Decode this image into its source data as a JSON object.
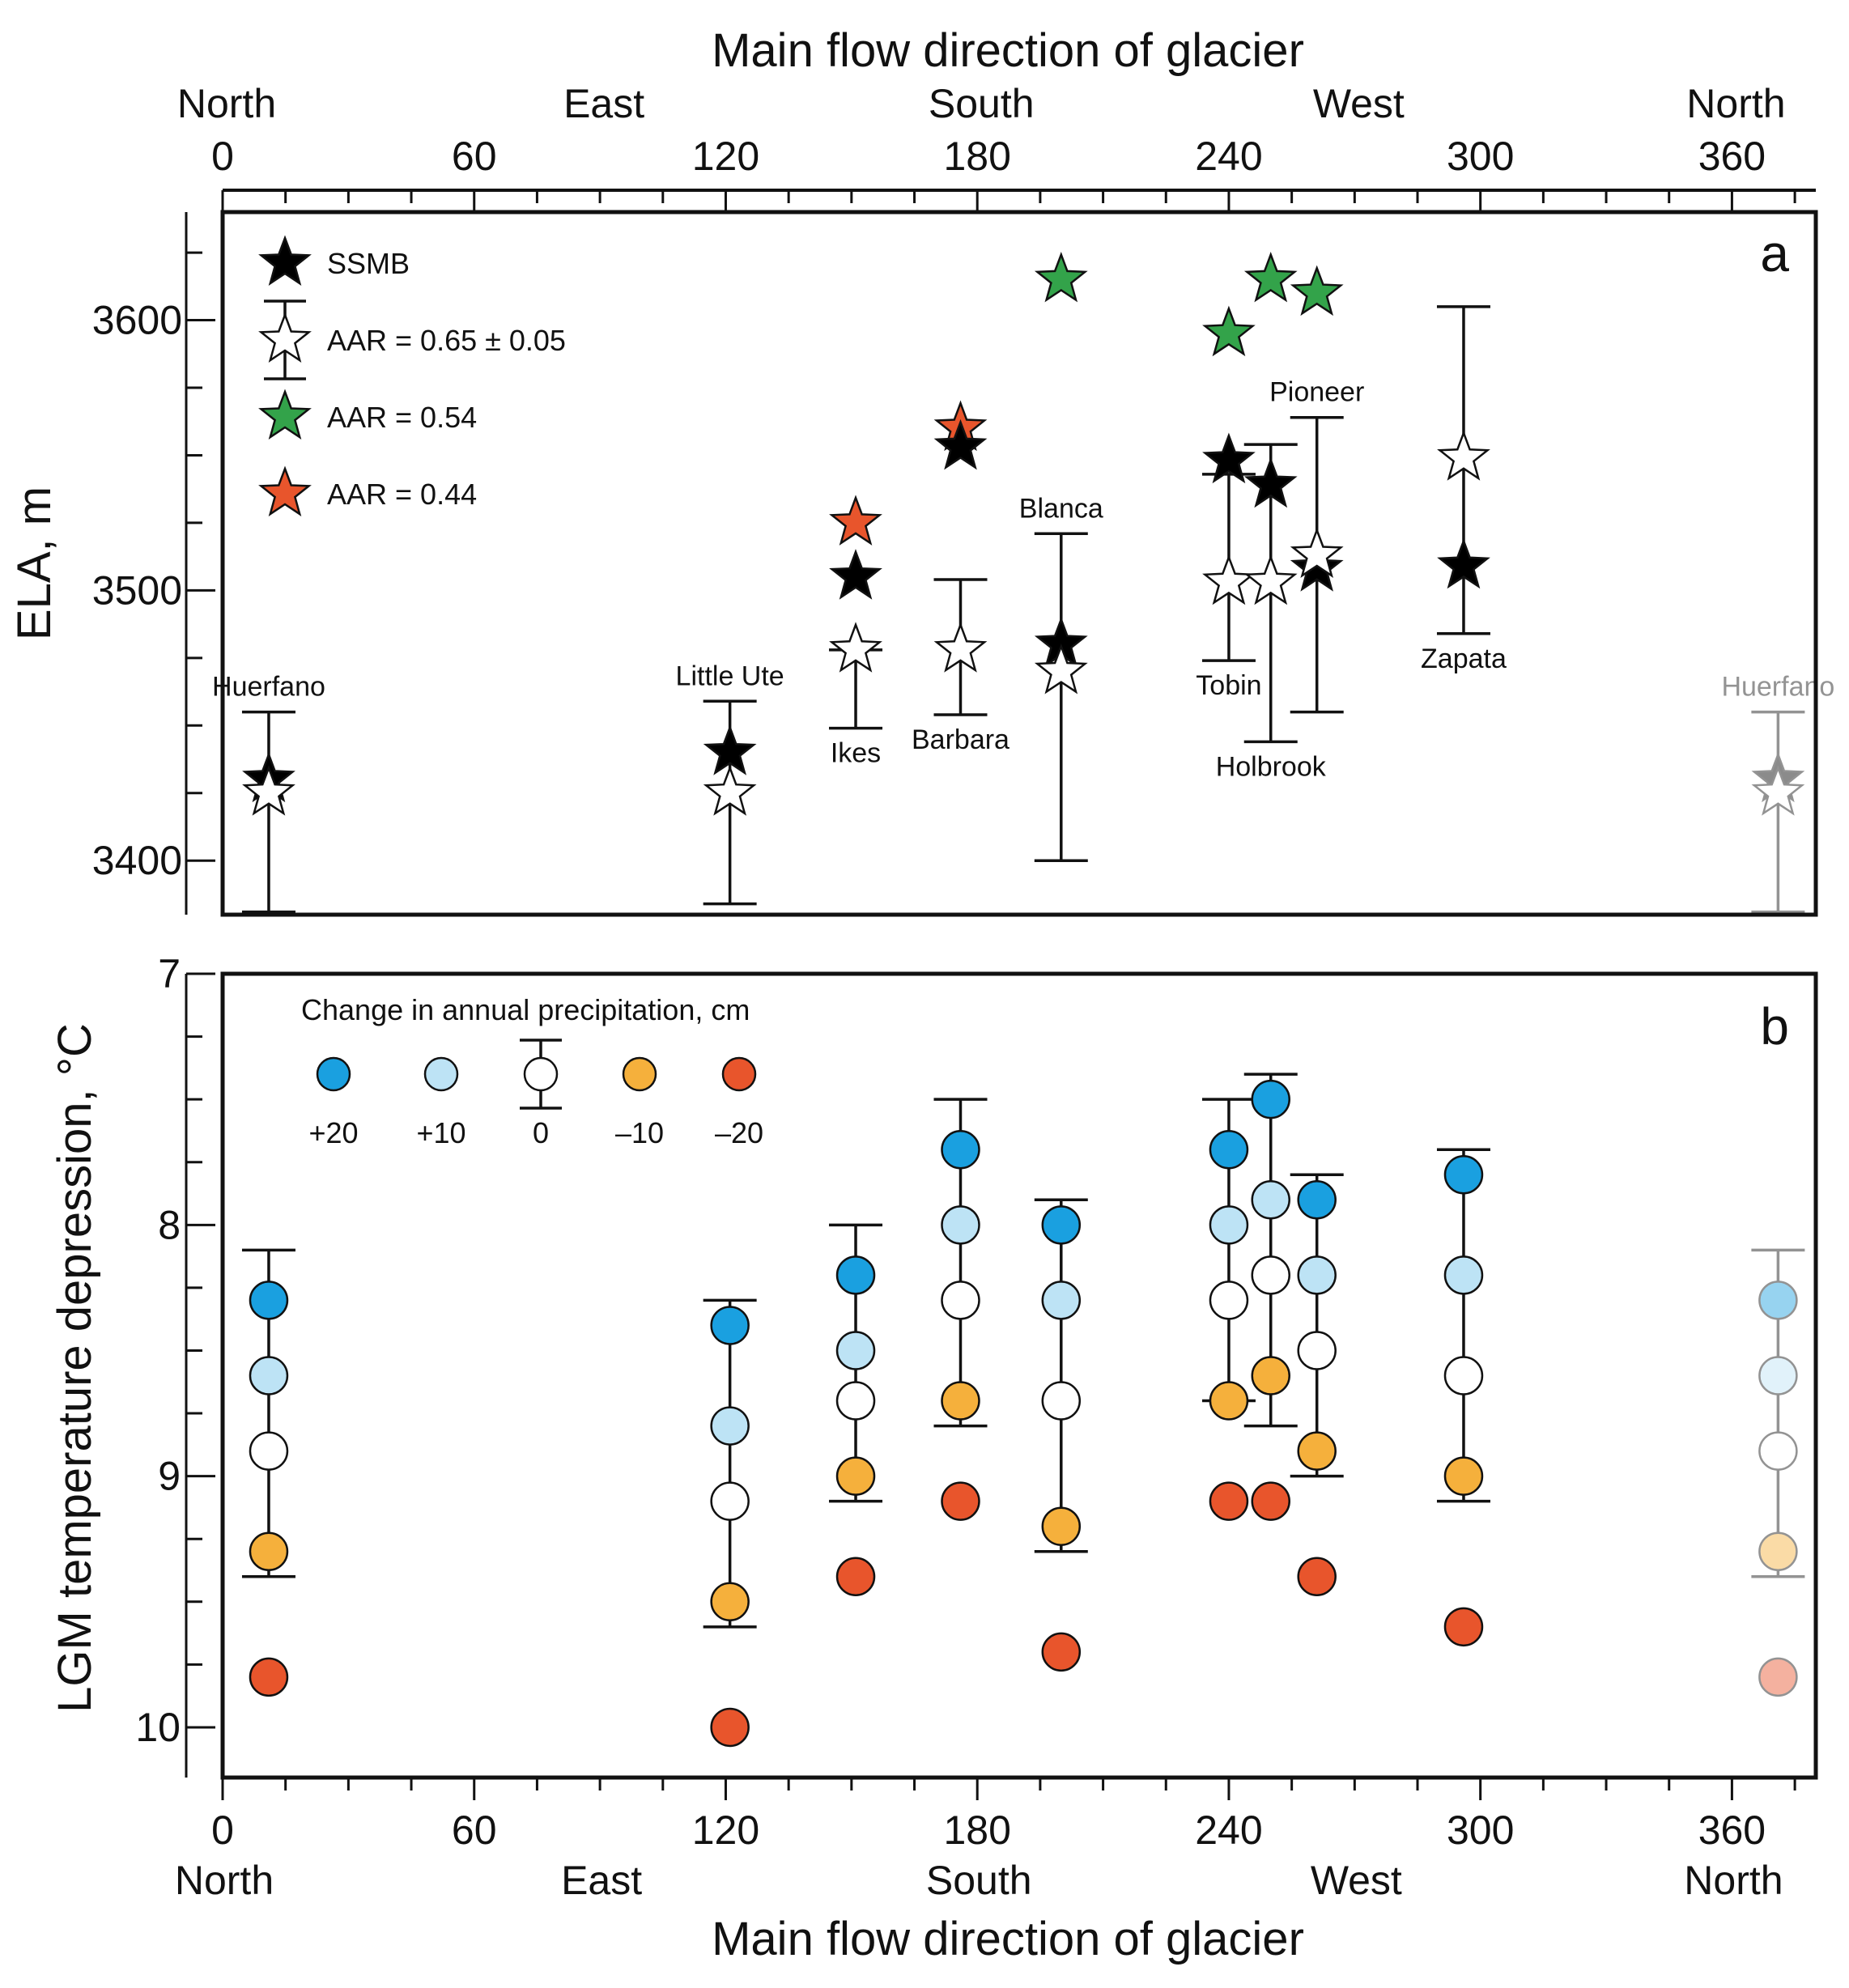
{
  "chart_data": [
    {
      "type": "scatter",
      "panel_label": "a",
      "top_title": "Main flow direction of glacier",
      "top_direction_labels": [
        {
          "text": "North",
          "x": 0
        },
        {
          "text": "East",
          "x": 90
        },
        {
          "text": "South",
          "x": 180
        },
        {
          "text": "West",
          "x": 270
        },
        {
          "text": "North",
          "x": 360
        }
      ],
      "xlim": [
        0,
        380
      ],
      "xticks": [
        0,
        60,
        120,
        180,
        240,
        300,
        360
      ],
      "ylabel": "ELA, m",
      "ylim": [
        3380,
        3640
      ],
      "yticks": [
        3400,
        3500,
        3600
      ],
      "legend": [
        {
          "key": "ssmb",
          "label": "SSMB",
          "color": "#000000"
        },
        {
          "key": "aar065",
          "label": "AAR = 0.65 ± 0.05",
          "color": "#ffffff"
        },
        {
          "key": "aar054",
          "label": "AAR = 0.54",
          "color": "#33a34a"
        },
        {
          "key": "aar044",
          "label": "AAR = 0.44",
          "color": "#e8552c"
        }
      ],
      "glaciers": [
        {
          "name": "Huerfano",
          "x": 11,
          "ssmb": 3430,
          "aar065": 3425,
          "err_low": 3381,
          "err_high": 3455,
          "aar054": null,
          "aar044": null,
          "label_pos": "above",
          "faded": false
        },
        {
          "name": "Little Ute",
          "x": 121,
          "ssmb": 3440,
          "aar065": 3425,
          "err_low": 3384,
          "err_high": 3459,
          "aar054": null,
          "aar044": null,
          "label_pos": "above",
          "faded": false
        },
        {
          "name": "Ikes",
          "x": 151,
          "ssmb": 3505,
          "aar065": 3478,
          "err_low": 3449,
          "err_high": 3478,
          "aar054": null,
          "aar044": 3525,
          "label_pos": "below",
          "faded": false
        },
        {
          "name": "Barbara",
          "x": 176,
          "ssmb": 3553,
          "aar065": 3478,
          "err_low": 3454,
          "err_high": 3504,
          "aar054": null,
          "aar044": 3560,
          "label_pos": "below",
          "faded": false
        },
        {
          "name": "Blanca",
          "x": 200,
          "ssmb": 3480,
          "aar065": 3470,
          "err_low": 3400,
          "err_high": 3521,
          "aar054": 3615,
          "aar044": null,
          "label_pos": "above",
          "faded": false
        },
        {
          "name": "Tobin",
          "x": 240,
          "ssmb": 3548,
          "aar065": 3503,
          "err_low": 3474,
          "err_high": 3543,
          "aar054": 3595,
          "aar044": null,
          "label_pos": "below",
          "faded": false
        },
        {
          "name": "Holbrook",
          "x": 250,
          "ssmb": 3539,
          "aar065": 3503,
          "err_low": 3444,
          "err_high": 3554,
          "aar054": 3615,
          "aar044": null,
          "label_pos": "below",
          "faded": false
        },
        {
          "name": "Pioneer",
          "x": 261,
          "ssmb": 3508,
          "aar065": 3513,
          "err_low": 3455,
          "err_high": 3564,
          "aar054": 3610,
          "aar044": null,
          "label_pos": "above",
          "faded": false
        },
        {
          "name": "Zapata",
          "x": 296,
          "ssmb": 3509,
          "aar065": 3549,
          "err_low": 3484,
          "err_high": 3605,
          "aar054": null,
          "aar044": null,
          "label_pos": "below",
          "faded": false
        },
        {
          "name": "Huerfano",
          "x": 371,
          "ssmb": 3430,
          "aar065": 3425,
          "err_low": 3381,
          "err_high": 3455,
          "aar054": null,
          "aar044": null,
          "label_pos": "above",
          "faded": true
        }
      ]
    },
    {
      "type": "scatter",
      "panel_label": "b",
      "bottom_title": "Main flow direction of glacier",
      "bottom_direction_labels": [
        {
          "text": "North",
          "x": 0
        },
        {
          "text": "East",
          "x": 90
        },
        {
          "text": "South",
          "x": 180
        },
        {
          "text": "West",
          "x": 270
        },
        {
          "text": "North",
          "x": 360
        }
      ],
      "xlim": [
        0,
        380
      ],
      "xticks": [
        0,
        60,
        120,
        180,
        240,
        300,
        360
      ],
      "ylabel": "LGM temperature depression, °C",
      "ylim": [
        10.2,
        7.0
      ],
      "yticks": [
        7,
        8,
        9,
        10
      ],
      "legend_title": "Change in annual precipitation, cm",
      "legend": [
        {
          "key": "p20",
          "label": "+20",
          "color": "#1aa0e0"
        },
        {
          "key": "p10",
          "label": "+10",
          "color": "#bde3f5"
        },
        {
          "key": "p0",
          "label": "0",
          "color": "#ffffff"
        },
        {
          "key": "m10",
          "label": "–10",
          "color": "#f5b03c"
        },
        {
          "key": "m20",
          "label": "–20",
          "color": "#e8552c"
        }
      ],
      "series": [
        {
          "name": "Huerfano",
          "x": 11,
          "p20": 8.3,
          "p10": 8.6,
          "p0": 8.9,
          "m10": 9.3,
          "m20": 9.8,
          "err_low": 8.1,
          "err_high": 9.4,
          "faded": false
        },
        {
          "name": "Little Ute",
          "x": 121,
          "p20": 8.4,
          "p10": 8.8,
          "p0": 9.1,
          "m10": 9.5,
          "m20": 10.0,
          "err_low": 8.3,
          "err_high": 9.6,
          "faded": false
        },
        {
          "name": "Ikes",
          "x": 151,
          "p20": 8.2,
          "p10": 8.5,
          "p0": 8.7,
          "m10": 9.0,
          "m20": 9.4,
          "err_low": 8.0,
          "err_high": 9.1,
          "faded": false
        },
        {
          "name": "Barbara",
          "x": 176,
          "p20": 7.7,
          "p10": 8.0,
          "p0": 8.3,
          "m10": 8.7,
          "m20": 9.1,
          "err_low": 7.5,
          "err_high": 8.8,
          "faded": false
        },
        {
          "name": "Blanca",
          "x": 200,
          "p20": 8.0,
          "p10": 8.3,
          "p0": 8.7,
          "m10": 9.2,
          "m20": 9.7,
          "err_low": 7.9,
          "err_high": 9.3,
          "faded": false
        },
        {
          "name": "Tobin",
          "x": 240,
          "p20": 7.7,
          "p10": 8.0,
          "p0": 8.3,
          "m10": 8.7,
          "m20": 9.1,
          "err_low": 7.5,
          "err_high": 8.7,
          "faded": false
        },
        {
          "name": "Holbrook",
          "x": 250,
          "p20": 7.5,
          "p10": 7.9,
          "p0": 8.2,
          "m10": 8.6,
          "m20": 9.1,
          "err_low": 7.4,
          "err_high": 8.8,
          "faded": false
        },
        {
          "name": "Pioneer",
          "x": 261,
          "p20": 7.9,
          "p10": 8.2,
          "p0": 8.5,
          "m10": 8.9,
          "m20": 9.4,
          "err_low": 7.8,
          "err_high": 9.0,
          "faded": false
        },
        {
          "name": "Zapata",
          "x": 296,
          "p20": 7.8,
          "p10": 8.2,
          "p0": 8.6,
          "m10": 9.0,
          "m20": 9.6,
          "err_low": 7.7,
          "err_high": 9.1,
          "faded": false
        },
        {
          "name": "Huerfano",
          "x": 371,
          "p20": 8.3,
          "p10": 8.6,
          "p0": 8.9,
          "m10": 9.3,
          "m20": 9.8,
          "err_low": 8.1,
          "err_high": 9.4,
          "faded": true
        }
      ]
    }
  ]
}
